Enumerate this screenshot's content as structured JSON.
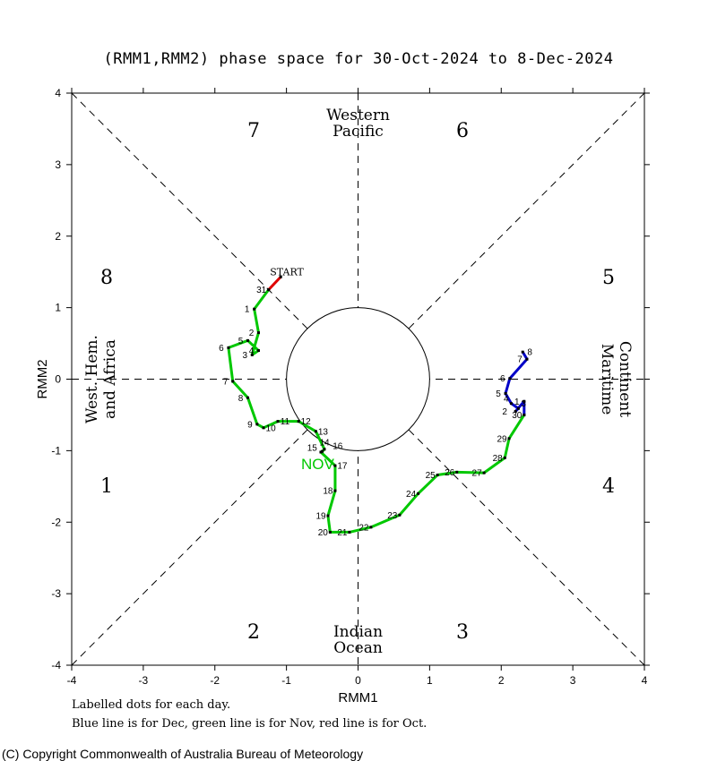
{
  "chart_data": {
    "type": "line",
    "title": "(RMM1,RMM2) phase space for 30-Oct-2024 to  8-Dec-2024",
    "xlabel": "RMM1",
    "ylabel": "RMM2",
    "xlim": [
      -4,
      4
    ],
    "ylim": [
      -4,
      4
    ],
    "xticks": [
      "-4",
      "-3",
      "-2",
      "-1",
      "0",
      "1",
      "2",
      "3",
      "4"
    ],
    "yticks": [
      "-4",
      "-3",
      "-2",
      "-1",
      "0",
      "1",
      "2",
      "3",
      "4"
    ],
    "phase_numbers": [
      "1",
      "2",
      "3",
      "4",
      "5",
      "6",
      "7",
      "8"
    ],
    "region_labels": {
      "top": [
        "Western",
        "Pacific"
      ],
      "bottom": [
        "Indian",
        "Ocean"
      ],
      "left": [
        "West. Hem.",
        "and Africa"
      ],
      "right": [
        "Maritime",
        "Continent"
      ]
    },
    "start_label": "START",
    "month_marker": "NOV",
    "series": [
      {
        "color": "#e00000",
        "points": [
          {
            "label": "",
            "x": -1.08,
            "y": 1.43
          },
          {
            "label": "31",
            "x": -1.25,
            "y": 1.25
          }
        ]
      },
      {
        "color": "#00c800",
        "points": [
          {
            "label": "31",
            "x": -1.25,
            "y": 1.25
          },
          {
            "label": "1",
            "x": -1.45,
            "y": 0.98
          },
          {
            "label": "2",
            "x": -1.39,
            "y": 0.65
          },
          {
            "label": "3",
            "x": -1.48,
            "y": 0.34
          },
          {
            "label": "4",
            "x": -1.39,
            "y": 0.4
          },
          {
            "label": "5",
            "x": -1.54,
            "y": 0.54
          },
          {
            "label": "6",
            "x": -1.81,
            "y": 0.44
          },
          {
            "label": "7",
            "x": -1.75,
            "y": -0.03
          },
          {
            "label": "8",
            "x": -1.54,
            "y": -0.26
          },
          {
            "label": "9",
            "x": -1.41,
            "y": -0.63
          },
          {
            "label": "10",
            "x": -1.32,
            "y": -0.68
          },
          {
            "label": "11",
            "x": -1.12,
            "y": -0.59
          },
          {
            "label": "12",
            "x": -0.83,
            "y": -0.59
          },
          {
            "label": "13",
            "x": -0.59,
            "y": -0.73
          },
          {
            "label": "14",
            "x": -0.47,
            "y": -0.98
          },
          {
            "label": "15",
            "x": -0.5,
            "y": -1.01
          },
          {
            "label": "16",
            "x": -0.52,
            "y": -1.02
          },
          {
            "label": "17",
            "x": -0.32,
            "y": -1.21
          },
          {
            "label": "18",
            "x": -0.32,
            "y": -1.56
          },
          {
            "label": "19",
            "x": -0.42,
            "y": -1.91
          },
          {
            "label": "20",
            "x": -0.39,
            "y": -2.14
          },
          {
            "label": "21",
            "x": -0.12,
            "y": -2.14
          },
          {
            "label": "22",
            "x": 0.18,
            "y": -2.07
          },
          {
            "label": "23",
            "x": 0.58,
            "y": -1.9
          },
          {
            "label": "24",
            "x": 0.84,
            "y": -1.6
          },
          {
            "label": "25",
            "x": 1.11,
            "y": -1.34
          },
          {
            "label": "26",
            "x": 1.38,
            "y": -1.3
          },
          {
            "label": "27",
            "x": 1.76,
            "y": -1.31
          },
          {
            "label": "28",
            "x": 2.05,
            "y": -1.1
          },
          {
            "label": "29",
            "x": 2.11,
            "y": -0.83
          },
          {
            "label": "30",
            "x": 2.32,
            "y": -0.5
          }
        ]
      },
      {
        "color": "#0000c8",
        "points": [
          {
            "label": "",
            "x": 2.32,
            "y": -0.5
          },
          {
            "label": "1",
            "x": 2.32,
            "y": -0.31
          },
          {
            "label": "2",
            "x": 2.2,
            "y": -0.45
          },
          {
            "label": "3",
            "x": 2.24,
            "y": -0.41
          },
          {
            "label": "4",
            "x": 2.14,
            "y": -0.34
          },
          {
            "label": "5",
            "x": 2.06,
            "y": -0.2
          },
          {
            "label": "6",
            "x": 2.12,
            "y": 0.01
          },
          {
            "label": "7",
            "x": 2.36,
            "y": 0.28
          },
          {
            "label": "8",
            "x": 2.3,
            "y": 0.38
          }
        ]
      }
    ]
  },
  "footer": {
    "line1": "Labelled dots for each day.",
    "line2": "Blue line is for Dec, green line is for Nov, red line is for Oct.",
    "copyright": "(C) Copyright Commonwealth of Australia Bureau of Meteorology"
  }
}
